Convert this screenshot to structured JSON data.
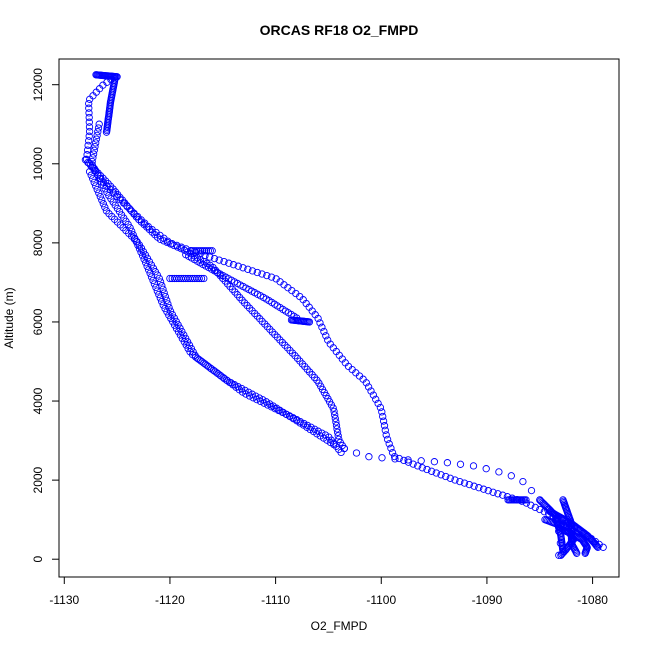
{
  "chart_data": {
    "type": "scatter",
    "title": "ORCAS RF18 O2_FMPD",
    "xlabel": "O2_FMPD",
    "ylabel": "Altitude (m)",
    "xlim": [
      -1130.5,
      -1077.5
    ],
    "ylim": [
      -450,
      12650
    ],
    "x_ticks": [
      -1130,
      -1120,
      -1110,
      -1100,
      -1090,
      -1080
    ],
    "y_ticks": [
      0,
      2000,
      4000,
      6000,
      8000,
      10000,
      12000
    ],
    "marker": "open-circle",
    "marker_color": "#0000ff",
    "grid": false,
    "legend": "none",
    "series": [
      {
        "segments": [
          {
            "points": [
              [
                -1125.2,
                12200
              ],
              [
                -1126.3,
                12000
              ],
              [
                -1127.7,
                11600
              ],
              [
                -1127.6,
                10800
              ],
              [
                -1127.9,
                10100
              ],
              [
                -1126.2,
                9500
              ],
              [
                -1124.0,
                8900
              ],
              [
                -1122.0,
                8400
              ],
              [
                -1120.0,
                8000
              ],
              [
                -1117.5,
                7750
              ],
              [
                -1114.0,
                7450
              ],
              [
                -1110.0,
                7100
              ],
              [
                -1107.5,
                6600
              ],
              [
                -1106.0,
                6100
              ],
              [
                -1105.0,
                5500
              ],
              [
                -1103.2,
                4900
              ],
              [
                -1101.5,
                4500
              ],
              [
                -1100.0,
                3800
              ],
              [
                -1099.5,
                3100
              ],
              [
                -1098.8,
                2600
              ],
              [
                -1096.0,
                2300
              ],
              [
                -1093.0,
                2000
              ],
              [
                -1089.5,
                1700
              ],
              [
                -1086.5,
                1450
              ],
              [
                -1083.0,
                1000
              ],
              [
                -1080.0,
                500
              ],
              [
                -1079.0,
                300
              ]
            ],
            "n": 160
          },
          {
            "points": [
              [
                -1127.0,
                12250
              ],
              [
                -1125.0,
                12200
              ]
            ],
            "n": 22
          },
          {
            "points": [
              [
                -1128.0,
                10100
              ],
              [
                -1125.5,
                9400
              ],
              [
                -1123.0,
                8600
              ],
              [
                -1121.0,
                8100
              ],
              [
                -1118.5,
                7800
              ],
              [
                -1116.0,
                7400
              ],
              [
                -1113.0,
                6500
              ],
              [
                -1110.5,
                5800
              ],
              [
                -1108.0,
                5100
              ],
              [
                -1106.0,
                4500
              ],
              [
                -1104.5,
                3800
              ],
              [
                -1104.0,
                3000
              ],
              [
                -1103.5,
                2800
              ]
            ],
            "n": 110
          },
          {
            "points": [
              [
                -1126.7,
                11000
              ],
              [
                -1127.4,
                10000
              ],
              [
                -1125.8,
                9200
              ],
              [
                -1123.8,
                8400
              ],
              [
                -1122.3,
                7500
              ],
              [
                -1120.6,
                6400
              ],
              [
                -1118.0,
                5200
              ],
              [
                -1114.5,
                4500
              ],
              [
                -1111.0,
                4000
              ],
              [
                -1108.0,
                3500
              ],
              [
                -1104.5,
                2900
              ]
            ],
            "n": 110
          },
          {
            "points": [
              [
                -1127.6,
                9800
              ],
              [
                -1126.0,
                8800
              ],
              [
                -1123.0,
                8000
              ],
              [
                -1121.0,
                7100
              ],
              [
                -1120.0,
                6300
              ],
              [
                -1117.5,
                5100
              ],
              [
                -1113.0,
                4200
              ],
              [
                -1108.5,
                3600
              ],
              [
                -1105.0,
                3100
              ],
              [
                -1103.8,
                2700
              ]
            ],
            "n": 100
          },
          {
            "points": [
              [
                -1118.5,
                7700
              ],
              [
                -1114.5,
                7100
              ],
              [
                -1111.0,
                6600
              ],
              [
                -1108.0,
                6100
              ]
            ],
            "n": 40
          },
          {
            "points": [
              [
                -1108.5,
                6050
              ],
              [
                -1106.8,
                6000
              ]
            ],
            "n": 16
          },
          {
            "points": [
              [
                -1120.0,
                7100
              ],
              [
                -1116.8,
                7100
              ]
            ],
            "n": 16
          },
          {
            "points": [
              [
                -1118.0,
                7800
              ],
              [
                -1116.0,
                7800
              ]
            ],
            "n": 12
          },
          {
            "points": [
              [
                -1103.5,
                2800
              ],
              [
                -1101.5,
                2600
              ],
              [
                -1098.0,
                2520
              ],
              [
                -1094.0,
                2450
              ],
              [
                -1091.0,
                2350
              ],
              [
                -1088.0,
                2150
              ],
              [
                -1086.5,
                1950
              ],
              [
                -1085.0,
                1500
              ],
              [
                -1083.5,
                1000
              ],
              [
                -1083.0,
                500
              ],
              [
                -1083.2,
                100
              ]
            ],
            "n": 22
          },
          {
            "points": [
              [
                -1088.0,
                1500
              ],
              [
                -1086.3,
                1500
              ]
            ],
            "n": 14
          },
          {
            "points": [
              [
                -1085.0,
                1500
              ],
              [
                -1083.5,
                1100
              ],
              [
                -1083.0,
                600
              ],
              [
                -1082.8,
                200
              ]
            ],
            "n": 40
          },
          {
            "points": [
              [
                -1082.8,
                1500
              ],
              [
                -1082.0,
                900
              ],
              [
                -1082.0,
                400
              ],
              [
                -1081.5,
                150
              ]
            ],
            "n": 40
          },
          {
            "points": [
              [
                -1084.0,
                1200
              ],
              [
                -1082.0,
                900
              ],
              [
                -1080.5,
                600
              ],
              [
                -1079.8,
                400
              ],
              [
                -1079.5,
                300
              ]
            ],
            "n": 50
          },
          {
            "points": [
              [
                -1083.2,
                800
              ],
              [
                -1081.0,
                500
              ],
              [
                -1080.5,
                300
              ],
              [
                -1080.7,
                150
              ]
            ],
            "n": 35
          },
          {
            "points": [
              [
                -1084.5,
                1000
              ],
              [
                -1082.5,
                800
              ],
              [
                -1081.8,
                500
              ],
              [
                -1082.5,
                250
              ],
              [
                -1083.0,
                100
              ]
            ],
            "n": 40
          },
          {
            "points": [
              [
                -1126.0,
                10800
              ],
              [
                -1125.6,
                11600
              ],
              [
                -1125.2,
                12150
              ]
            ],
            "n": 35
          }
        ]
      }
    ]
  }
}
